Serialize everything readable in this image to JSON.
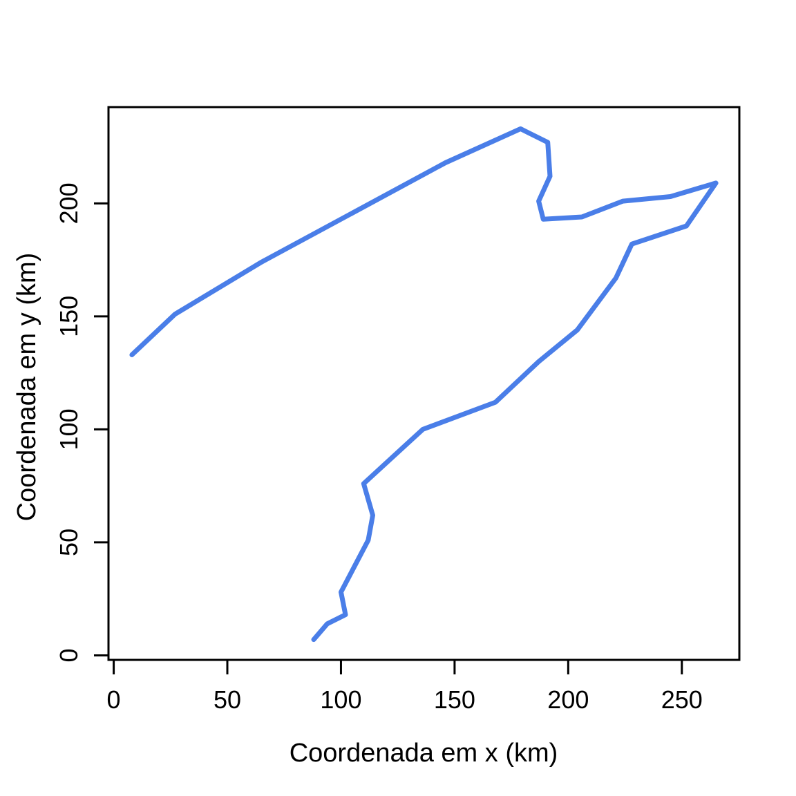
{
  "figure": {
    "background": "#ffffff",
    "text_color": "#000000"
  },
  "chart_data": {
    "type": "line",
    "title": "",
    "xlabel": "Coordenada em x (km)",
    "ylabel": "Coordenada em y (km)",
    "xlim": [
      -2.3,
      275.3
    ],
    "ylim": [
      -2.0,
      242.6
    ],
    "x_ticks": [
      0,
      50,
      100,
      150,
      200,
      250
    ],
    "y_ticks": [
      0,
      50,
      100,
      150,
      200
    ],
    "grid": false,
    "legend": "none",
    "line_color": "#4a7ee8",
    "line_width": 7,
    "points": [
      [
        8,
        133
      ],
      [
        27,
        151
      ],
      [
        65,
        174
      ],
      [
        146,
        218
      ],
      [
        179,
        233
      ],
      [
        191,
        227
      ],
      [
        192,
        212
      ],
      [
        187,
        201
      ],
      [
        189,
        193
      ],
      [
        206,
        194
      ],
      [
        224,
        201
      ],
      [
        245,
        203
      ],
      [
        265,
        209
      ],
      [
        252,
        190
      ],
      [
        228,
        182
      ],
      [
        221,
        167
      ],
      [
        204,
        144
      ],
      [
        187,
        130
      ],
      [
        168,
        112
      ],
      [
        136,
        100
      ],
      [
        110,
        76
      ],
      [
        114,
        62
      ],
      [
        112,
        51
      ],
      [
        100,
        28
      ],
      [
        102,
        18
      ],
      [
        94,
        14
      ],
      [
        88,
        7
      ]
    ]
  }
}
